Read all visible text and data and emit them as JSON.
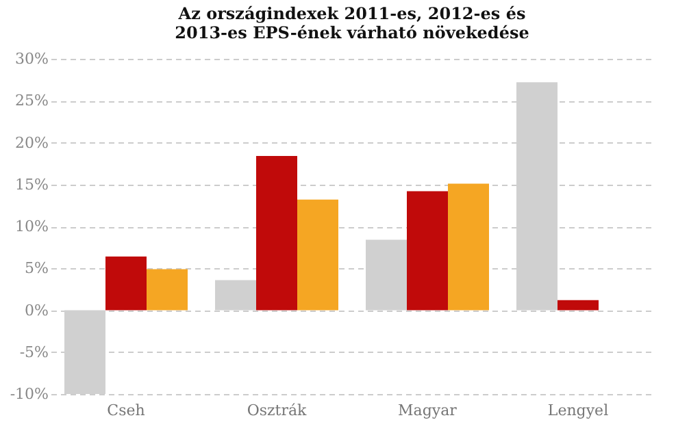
{
  "chart_data": {
    "type": "bar",
    "title": "Az országindexek 2011-es, 2012-es és 2013-es EPS-ének várható növekedése",
    "categories": [
      "Cseh",
      "Osztrák",
      "Magyar",
      "Lengyel"
    ],
    "series": [
      {
        "color": "#d0d0d0",
        "values": [
          -10,
          3.6,
          8.4,
          27.2
        ]
      },
      {
        "color": "#c00a0a",
        "values": [
          6.4,
          18.4,
          14.2,
          1.2
        ]
      },
      {
        "color": "#f5a623",
        "values": [
          4.9,
          13.2,
          15.1,
          null
        ]
      }
    ],
    "ylim": [
      -10,
      30
    ],
    "yticks": [
      {
        "value": -10,
        "label": "-10%"
      },
      {
        "value": -5,
        "label": "-5%"
      },
      {
        "value": 0,
        "label": "0%"
      },
      {
        "value": 5,
        "label": "5%"
      },
      {
        "value": 10,
        "label": "10%"
      },
      {
        "value": 15,
        "label": "15%"
      },
      {
        "value": 20,
        "label": "20%"
      },
      {
        "value": 25,
        "label": "25%"
      },
      {
        "value": 30,
        "label": "30%"
      }
    ],
    "grid": "y"
  }
}
